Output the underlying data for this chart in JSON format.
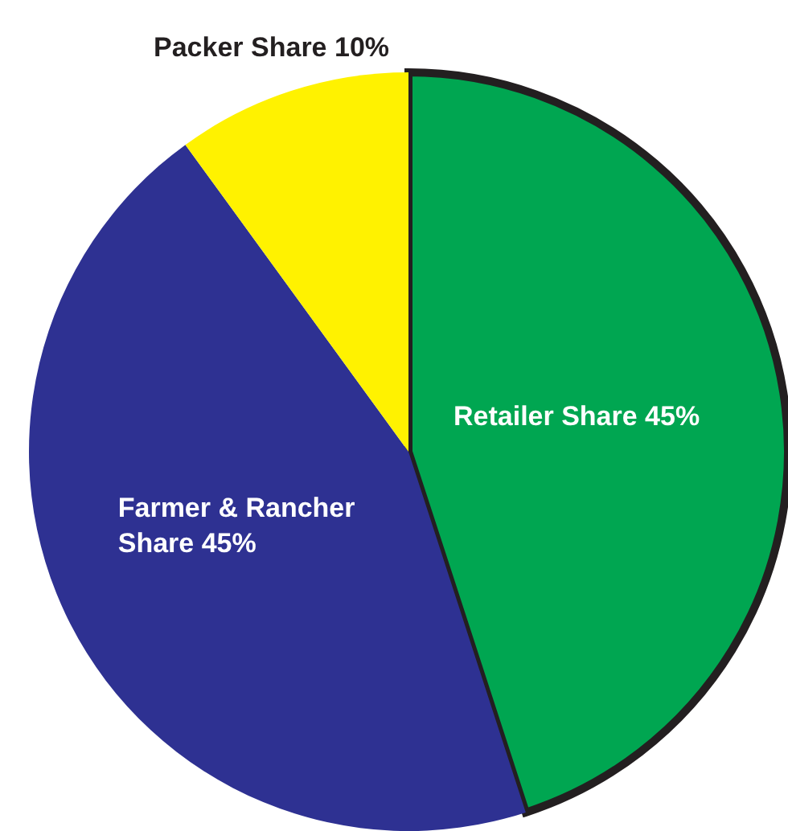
{
  "chart_data": {
    "type": "pie",
    "categories": [
      "Retailer Share",
      "Farmer & Rancher Share",
      "Packer Share"
    ],
    "values": [
      45,
      45,
      10
    ],
    "colors": [
      "#00a651",
      "#2e3192",
      "#fff200"
    ],
    "value_labels": [
      "45%",
      "45%",
      "10%"
    ],
    "legend": false
  }
}
